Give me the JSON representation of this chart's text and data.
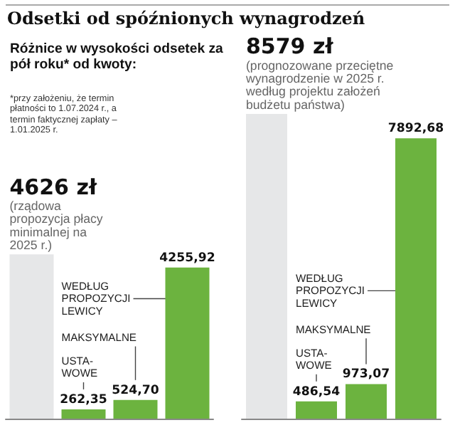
{
  "chart_data": [
    {
      "type": "bar",
      "title": "Odsetki od spóźnionych wynagrodzeń",
      "subtitle": "Różnice w wysokości odsetek za pół roku* od kwoty:",
      "annotations": [
        "*przy założeniu, że termin płatności to 1.07.2024 r., a termin faktycznej zapłaty – 1.01.2025 r.",
        "(rządowa propozycja płacy minimalnej na 2025 r.)",
        "USTA-WOWE",
        "MAKSYMALNE",
        "WEDŁUG PROPOZYCJI LEWICY"
      ],
      "categories": [
        null,
        null,
        null,
        null
      ],
      "values": [
        4626,
        262.35,
        524.7,
        4255.92
      ],
      "value_labels": [
        "4626 zł",
        "262,35",
        "524,70",
        "4255,92"
      ],
      "colors": [
        "#e6e7e8",
        "#6cb33f",
        "#6cb33f",
        "#6cb33f"
      ]
    },
    {
      "type": "bar",
      "annotations": [
        "(prognozowane przeciętne wynagrodzenie w 2025 r. według projektu założeń budżetu państwa)",
        "USTA-WOWE",
        "MAKSYMALNE",
        "WEDŁUG PROPOZYCJI LEWICY"
      ],
      "categories": [
        null,
        null,
        null,
        null
      ],
      "values": [
        8579,
        486.54,
        973.07,
        7892.68
      ],
      "value_labels": [
        "8579 zł",
        "486,54",
        "973,07",
        "7892,68"
      ],
      "colors": [
        "#e6e7e8",
        "#6cb33f",
        "#6cb33f",
        "#6cb33f"
      ]
    }
  ]
}
